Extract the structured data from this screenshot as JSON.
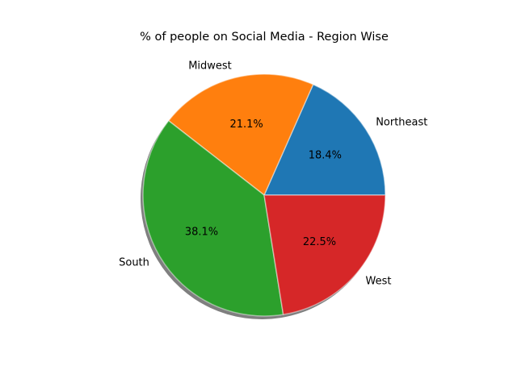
{
  "chart_data": {
    "type": "pie",
    "title": "% of people on Social Media - Region Wise",
    "categories": [
      "Northeast",
      "Midwest",
      "South",
      "West"
    ],
    "values": [
      18.4,
      21.1,
      38.1,
      22.5
    ],
    "percent_labels": [
      "18.4%",
      "21.1%",
      "38.1%",
      "22.5%"
    ],
    "colors": [
      "#1f77b4",
      "#ff7f0e",
      "#2ca02c",
      "#d62728"
    ],
    "start_angle_deg": 0,
    "direction": "counterclockwise",
    "shadow": true
  }
}
